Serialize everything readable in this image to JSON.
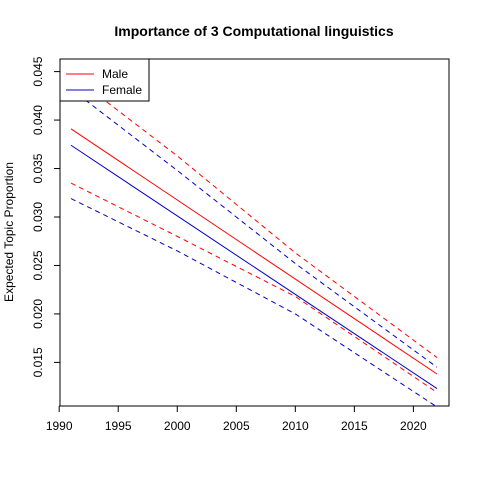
{
  "chart_data": {
    "type": "line",
    "title": "Importance of 3 Computational linguistics",
    "xlabel": "",
    "ylabel": "Expected Topic Proportion",
    "xlim": [
      1991,
      2022
    ],
    "ylim": [
      0.0105,
      0.0463
    ],
    "x_ticks": [
      1990,
      1995,
      2000,
      2005,
      2010,
      2015,
      2020
    ],
    "y_ticks": [
      0.015,
      0.02,
      0.025,
      0.03,
      0.035,
      0.04,
      0.045
    ],
    "x_tick_labels": [
      "1990",
      "1995",
      "2000",
      "2005",
      "2010",
      "2015",
      "2020"
    ],
    "y_tick_labels": [
      "0.015",
      "0.020",
      "0.025",
      "0.030",
      "0.035",
      "0.040",
      "0.045"
    ],
    "grid": false,
    "legend_position": "top-left",
    "series": [
      {
        "name": "Male",
        "color": "#ff0000",
        "style": "solid",
        "x": [
          1991,
          2022
        ],
        "y": [
          0.0391,
          0.0138
        ]
      },
      {
        "name": "Male",
        "color": "#ff0000",
        "style": "dashed",
        "legend": false,
        "x": [
          1991,
          2000,
          2010,
          2022
        ],
        "y": [
          0.0447,
          0.0363,
          0.0263,
          0.0155
        ]
      },
      {
        "name": "Male",
        "color": "#ff0000",
        "style": "dashed",
        "legend": false,
        "x": [
          1991,
          2000,
          2010,
          2022
        ],
        "y": [
          0.0335,
          0.028,
          0.0218,
          0.0119
        ]
      },
      {
        "name": "Female",
        "color": "#0000cc",
        "style": "solid",
        "x": [
          1991,
          2022
        ],
        "y": [
          0.0374,
          0.0123
        ]
      },
      {
        "name": "Female",
        "color": "#0000cc",
        "style": "dashed",
        "legend": false,
        "x": [
          1991,
          2000,
          2010,
          2022
        ],
        "y": [
          0.0432,
          0.0348,
          0.0252,
          0.0145
        ]
      },
      {
        "name": "Female",
        "color": "#0000cc",
        "style": "dashed",
        "legend": false,
        "x": [
          1991,
          2000,
          2010,
          2022
        ],
        "y": [
          0.0319,
          0.0265,
          0.02,
          0.0104
        ]
      }
    ],
    "legend": [
      {
        "label": "Male",
        "color": "#ff0000"
      },
      {
        "label": "Female",
        "color": "#0000cc"
      }
    ]
  }
}
